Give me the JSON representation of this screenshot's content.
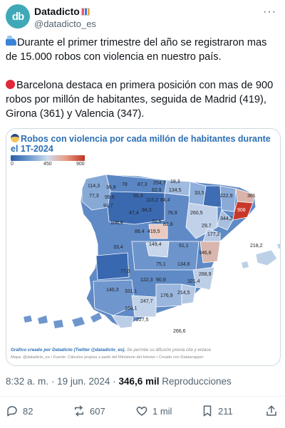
{
  "author": {
    "name": "Datadicto",
    "handle": "@datadicto_es",
    "avatar_text": "db"
  },
  "tweet": {
    "paragraph1": "Durante el primer trimestre del año se registraron mas de 15.000 robos con violencia en nuestro país.",
    "paragraph2": "Barcelona destaca en primera posición con mas de 900 robos por millón de habitantes, seguida de Madrid (419), Girona (361) y Valencia (347)."
  },
  "card": {
    "title": "Robos con violencia por cada millón de habitantes durante el 1T-2024",
    "legend": {
      "min": "0",
      "mid": "450",
      "max": "900",
      "colors": [
        "#2a5ca8",
        "#cfdcec",
        "#c0321f"
      ]
    },
    "credit": "Gráfico creado por Datadicto (Twitter @datadicto_es).",
    "credit_note": " Se permite su difusión previa cita y enlace",
    "sources": "Mapa: @datadicto_es • Fuente: Cálculos propios a partir del Ministerio del Interior • Creado con Datawrapper",
    "values": [
      "114,3",
      "36,8",
      "78",
      "87,3",
      "254,7",
      "18,3",
      "62,9",
      "134,5",
      "77,3",
      "99,6",
      "50,3",
      "115,2",
      "84,4",
      "33,5",
      "222,9",
      "361",
      "91,7",
      "47,4",
      "94,3",
      "78,9",
      "260,5",
      "908",
      "106,9",
      "32,5",
      "82,8",
      "344,2",
      "88,4",
      "419,5",
      "29,7",
      "177,2",
      "33,4",
      "149,4",
      "51,1",
      "346,8",
      "218,2",
      "75,1",
      "134,6",
      "77,6",
      "268,9",
      "122,3",
      "90,9",
      "321,4",
      "140,3",
      "331,1",
      "214,5",
      "176,9",
      "247,7",
      "166,1",
      "227,5",
      "266,6"
    ]
  },
  "meta": {
    "time": "8:32 a. m.",
    "separator": "·",
    "date": "19 jun. 2024",
    "views_count": "346,6 mil",
    "views_label": "Reproducciones"
  },
  "actions": {
    "replies": "82",
    "reposts": "607",
    "likes": "1 mil",
    "bookmarks": "211"
  }
}
